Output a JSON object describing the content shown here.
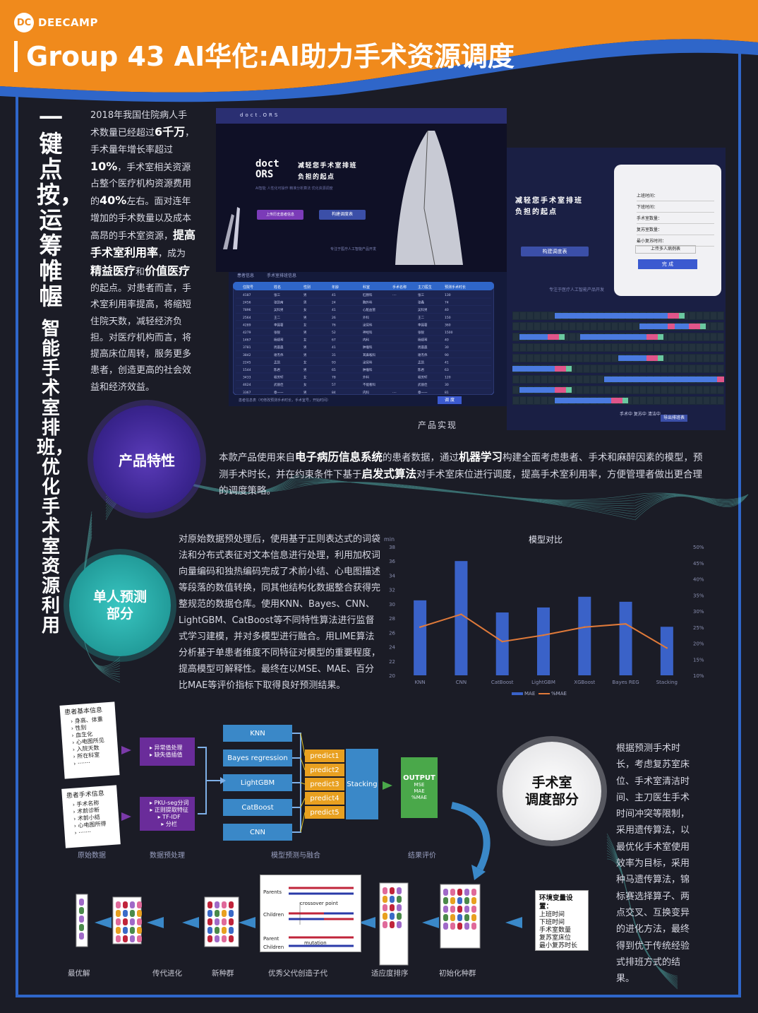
{
  "brand": {
    "logo_mark": "DC",
    "logo_text": "DEECAMP"
  },
  "title": "Group 43  AI华佗:AI助力手术资源调度",
  "vertical_title": {
    "main": "一键点按，运筹帷幄",
    "sub": "智能手术室排班，优化手术室资源利用"
  },
  "intro": {
    "segments": [
      {
        "t": "2018年我国住院病人手术数量已经超过",
        "b": false
      },
      {
        "t": "6千万",
        "b": true
      },
      {
        "t": "，手术量年增长率超过",
        "b": false
      },
      {
        "t": "10%",
        "b": true
      },
      {
        "t": "，手术室相关资源占整个医疗机构资源费用的",
        "b": false
      },
      {
        "t": "40%",
        "b": true
      },
      {
        "t": "左右。面对连年增加的手术数量以及成本高昂的手术室资源，",
        "b": false
      },
      {
        "t": "提高手术室利用率",
        "b": true
      },
      {
        "t": "，成为",
        "b": false
      },
      {
        "t": "精益医疗",
        "b": true
      },
      {
        "t": "和",
        "b": false
      },
      {
        "t": "价值医疗",
        "b": true
      },
      {
        "t": "的起点。对患者而言，手术室利用率提高，将缩短住院天数，减轻经济负担。对医疗机构而言，将提高床位周转，服务更多患者，创造更高的社会效益和经济效益。",
        "b": false
      }
    ]
  },
  "screens": {
    "header_brand": "doct.ORS",
    "hero_logo": "doct\nORS",
    "hero_slogan_1": "减轻您手术室排班",
    "hero_slogan_2": "负担的起点",
    "hero_tags": "AI智能    人性化可操作    精准分析算法    优化资源调度",
    "btn_upload": "上传历史患者信息",
    "btn_build": "构建调度表",
    "footer_note": "专注于医疗人工智能产品开发",
    "table_tabs": [
      "患者信息",
      "手术室排班信息"
    ],
    "table_headers": [
      "住院号",
      "姓名",
      "性别",
      "年龄",
      "科室",
      "手术名称",
      "主刀医生",
      "预测手术时长"
    ],
    "table_rows": [
      [
        "4187",
        "张三",
        "男",
        "41",
        "肛肠科",
        "····",
        "张三",
        "130"
      ],
      [
        "2456",
        "张凯南",
        "男",
        "24",
        "胸外科",
        "",
        "张鑫",
        "74"
      ],
      [
        "7896",
        "吴科男",
        "女",
        "41",
        "心脏血管",
        "",
        "吴科男",
        "40"
      ],
      [
        "2564",
        "王二",
        "男",
        "26",
        "外科",
        "",
        "王二",
        "150"
      ],
      [
        "4289",
        "李国著",
        "女",
        "76",
        "泌尿科",
        "",
        "李国著",
        "360"
      ],
      [
        "4279",
        "张锐",
        "男",
        "52",
        "神经科",
        "",
        "张锐",
        "1500"
      ],
      [
        "1467",
        "杨靖琴",
        "女",
        "67",
        "内科",
        "",
        "杨靖琴",
        "40"
      ],
      [
        "3781",
        "周晨晨",
        "男",
        "41",
        "肿瘤科",
        "",
        "周晨晨",
        "30"
      ],
      [
        "3842",
        "谢杰伟",
        "男",
        "31",
        "耳鼻喉科",
        "",
        "谢杰伟",
        "90"
      ],
      [
        "2245",
        "孟凯",
        "女",
        "93",
        "泌尿科",
        "",
        "孟凯",
        "41"
      ],
      [
        "1544",
        "陈君",
        "男",
        "65",
        "肿瘤科",
        "",
        "陈君",
        "63"
      ],
      [
        "3433",
        "程芳轩",
        "女",
        "78",
        "外科",
        "",
        "程芳轩",
        "120"
      ],
      [
        "4624",
        "武丽佳",
        "女",
        "57",
        "不能看科",
        "",
        "武丽佳",
        "30"
      ],
      [
        "3367",
        "章一一",
        "男",
        "84",
        "内科",
        "····",
        "章一一",
        "81"
      ]
    ],
    "table_footer": "患者信息表（可修改预测手术时长，手术室号，开始时间）",
    "btn_schedule": "调  度",
    "form_fields": [
      "上班时间：",
      "下班时间：",
      "手术室数量：",
      "复苏室数量：",
      "最小复苏时间："
    ],
    "form_upload": "上传多人病例表",
    "form_done": "完  成",
    "gantt_footer": "导出排班表",
    "gantt_legend": "手术中  复苏中  清洁中",
    "caption": "产品实现"
  },
  "sections": {
    "product": "产品特性",
    "predict": "单人预测\n部分",
    "schedule": "手术室\n调度部分"
  },
  "product_text": [
    {
      "t": "本款产品使用来自",
      "b": false
    },
    {
      "t": "电子病历信息系统",
      "b": true
    },
    {
      "t": "的患者数据，通过",
      "b": false
    },
    {
      "t": "机器学习",
      "b": true
    },
    {
      "t": "构建全面考虑患者、手术和麻醉因素的模型，预测手术时长，并在约束条件下基于",
      "b": false
    },
    {
      "t": "启发式算法",
      "b": true
    },
    {
      "t": "对手术室床位进行调度，提高手术室利用率，方便管理者做出更合理的调度策略。",
      "b": false
    }
  ],
  "predict_text": "对原始数据预处理后，使用基于正则表达式的词袋法和分布式表征对文本信息进行处理，利用加权词向量编码和独热编码完成了术前小结、心电图描述等段落的数值转换，同其他结构化数据整合获得完整规范的数据仓库。使用KNN、Bayes、CNN、LightGBM、CatBoost等不同特性算法进行监督式学习建模，并对多模型进行融合。用LIME算法分析基于单患者维度不同特征对模型的重要程度，提高模型可解释性。最终在以MSE、MAE、百分比MAE等评价指标下取得良好预测结果。",
  "schedule_text": "根据预测手术时长，考虑复苏室床位、手术室清洁时间、主刀医生手术时间冲突等限制，采用遗传算法，以最优化手术室使用效率为目标，采用种马遗传算法，锦标赛选择算子、两点交叉、互换变异的进化方法，最终得到优于传统经验式排班方式的结果。",
  "chart_data": {
    "type": "bar",
    "title": "模型对比",
    "ylabel": "min",
    "categories": [
      "KNN",
      "CNN",
      "CatBoost",
      "LightGBM",
      "XGBoost",
      "Bayes REG",
      "Stacking"
    ],
    "ylim": [
      20,
      38
    ],
    "y2lim": [
      10,
      50
    ],
    "yticks": [
      20,
      22,
      24,
      26,
      28,
      30,
      32,
      34,
      36,
      38
    ],
    "y2ticks": [
      "10%",
      "15%",
      "20%",
      "25%",
      "30%",
      "35%",
      "40%",
      "45%",
      "50%"
    ],
    "series": [
      {
        "name": "MAE",
        "kind": "bar",
        "axis": "left",
        "values": [
          30.5,
          36.0,
          28.8,
          29.5,
          31.0,
          30.3,
          26.8
        ],
        "color": "#3a62c8"
      },
      {
        "name": "%MAE",
        "kind": "line",
        "axis": "right",
        "values": [
          25.0,
          29.0,
          20.5,
          22.5,
          25.0,
          26.0,
          18.5
        ],
        "color": "#e07a3a"
      }
    ],
    "legend_position": "bottom"
  },
  "pipeline": {
    "card1_title": "患者基本信息",
    "card1_items": [
      "身高、体重",
      "性别",
      "血生化",
      "心电图所见",
      "入院天数",
      "所在科室",
      "·······"
    ],
    "card2_title": "患者手术信息",
    "card2_items": [
      "手术名称",
      "术前诊断",
      "术前小结",
      "心电图所得",
      "·······"
    ],
    "pre1": [
      "异常值处理",
      "缺失值插值"
    ],
    "pre2": [
      "PKU-seg分词",
      "正则提取特征",
      "TF-IDF",
      "分栏"
    ],
    "models": [
      "KNN",
      "Bayes regression",
      "LightGBM",
      "CatBoost",
      "CNN"
    ],
    "predicts": [
      "predict1",
      "predict2",
      "predict3",
      "predict4",
      "predict5"
    ],
    "stacking": "Stacking",
    "output_title": "OUTPUT",
    "output_items": [
      "MSE",
      "MAE",
      "%MAE"
    ],
    "labels": [
      "原始数据",
      "数据预处理",
      "模型预测与融合",
      "结果评价"
    ]
  },
  "ga": {
    "parents": "Parents",
    "children": "Children",
    "crossover": "crossover point",
    "parent": "Parent",
    "child": "Children",
    "mutation": "mutation",
    "env_title": "环境变量设置：",
    "env_items": [
      "上班时间",
      "下班时间",
      "手术室数量",
      "复苏室床位",
      "最小复苏时长"
    ],
    "labels": [
      "最优解",
      "传代进化",
      "新种群",
      "优秀父代创造子代",
      "适应度排序",
      "初始化种群"
    ]
  },
  "colors": {
    "accent_orange": "#f08a1c",
    "frame_blue": "#2f66c9",
    "purple": "#5a3bb8",
    "teal": "#2aa8a4"
  }
}
